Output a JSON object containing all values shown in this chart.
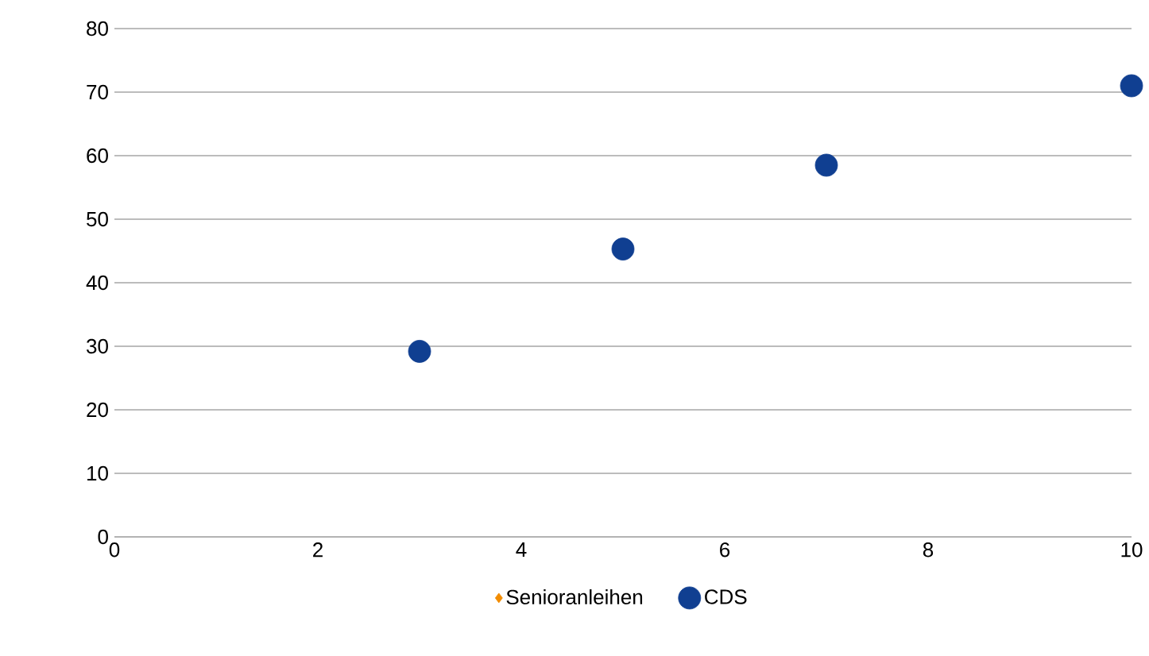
{
  "chart_data": {
    "type": "scatter",
    "xlim": [
      0,
      10
    ],
    "xticks": [
      0,
      2,
      4,
      6,
      8,
      10
    ],
    "ylim": [
      0,
      80
    ],
    "yticks": [
      0,
      10,
      20,
      30,
      40,
      50,
      60,
      70,
      80
    ],
    "grid": "y",
    "legend": "bottom",
    "series": [
      {
        "name": "Senioranleihen",
        "color": "#f28c00",
        "marker": "diamond"
      },
      {
        "name": "CDS",
        "color": "#103f91",
        "marker": "circle",
        "x": [
          3,
          5,
          7,
          10
        ],
        "values": [
          29.2,
          45.3,
          58.5,
          71
        ]
      }
    ]
  }
}
